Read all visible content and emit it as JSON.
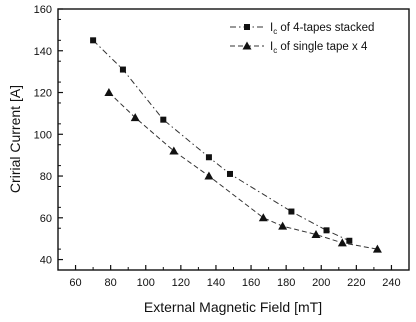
{
  "chart_data": {
    "type": "scatter",
    "xlabel": "External Magnetic Field [mT]",
    "ylabel": "Cririal Current [A]",
    "xlim": [
      50,
      250
    ],
    "ylim": [
      35,
      160
    ],
    "x_ticks": [
      60,
      80,
      100,
      120,
      140,
      160,
      180,
      200,
      220,
      240
    ],
    "y_ticks": [
      40,
      60,
      80,
      100,
      120,
      140,
      160
    ],
    "grid": false,
    "legend_position": "top-right",
    "series": [
      {
        "name_prefix": "I",
        "name_sub": "c",
        "name_suffix": " of 4-tapes stacked",
        "marker": "square",
        "line": "dash-dot",
        "x": [
          70,
          87,
          110,
          136,
          148,
          183,
          203,
          216
        ],
        "y": [
          145,
          131,
          107,
          89,
          81,
          63,
          54,
          49
        ]
      },
      {
        "name_prefix": "I",
        "name_sub": "c",
        "name_suffix": " of single tape x 4",
        "marker": "triangle",
        "line": "dash",
        "x": [
          79,
          94,
          116,
          136,
          167,
          178,
          197,
          212,
          232
        ],
        "y": [
          120,
          108,
          92,
          80,
          60,
          56,
          52,
          48,
          45
        ]
      }
    ]
  }
}
